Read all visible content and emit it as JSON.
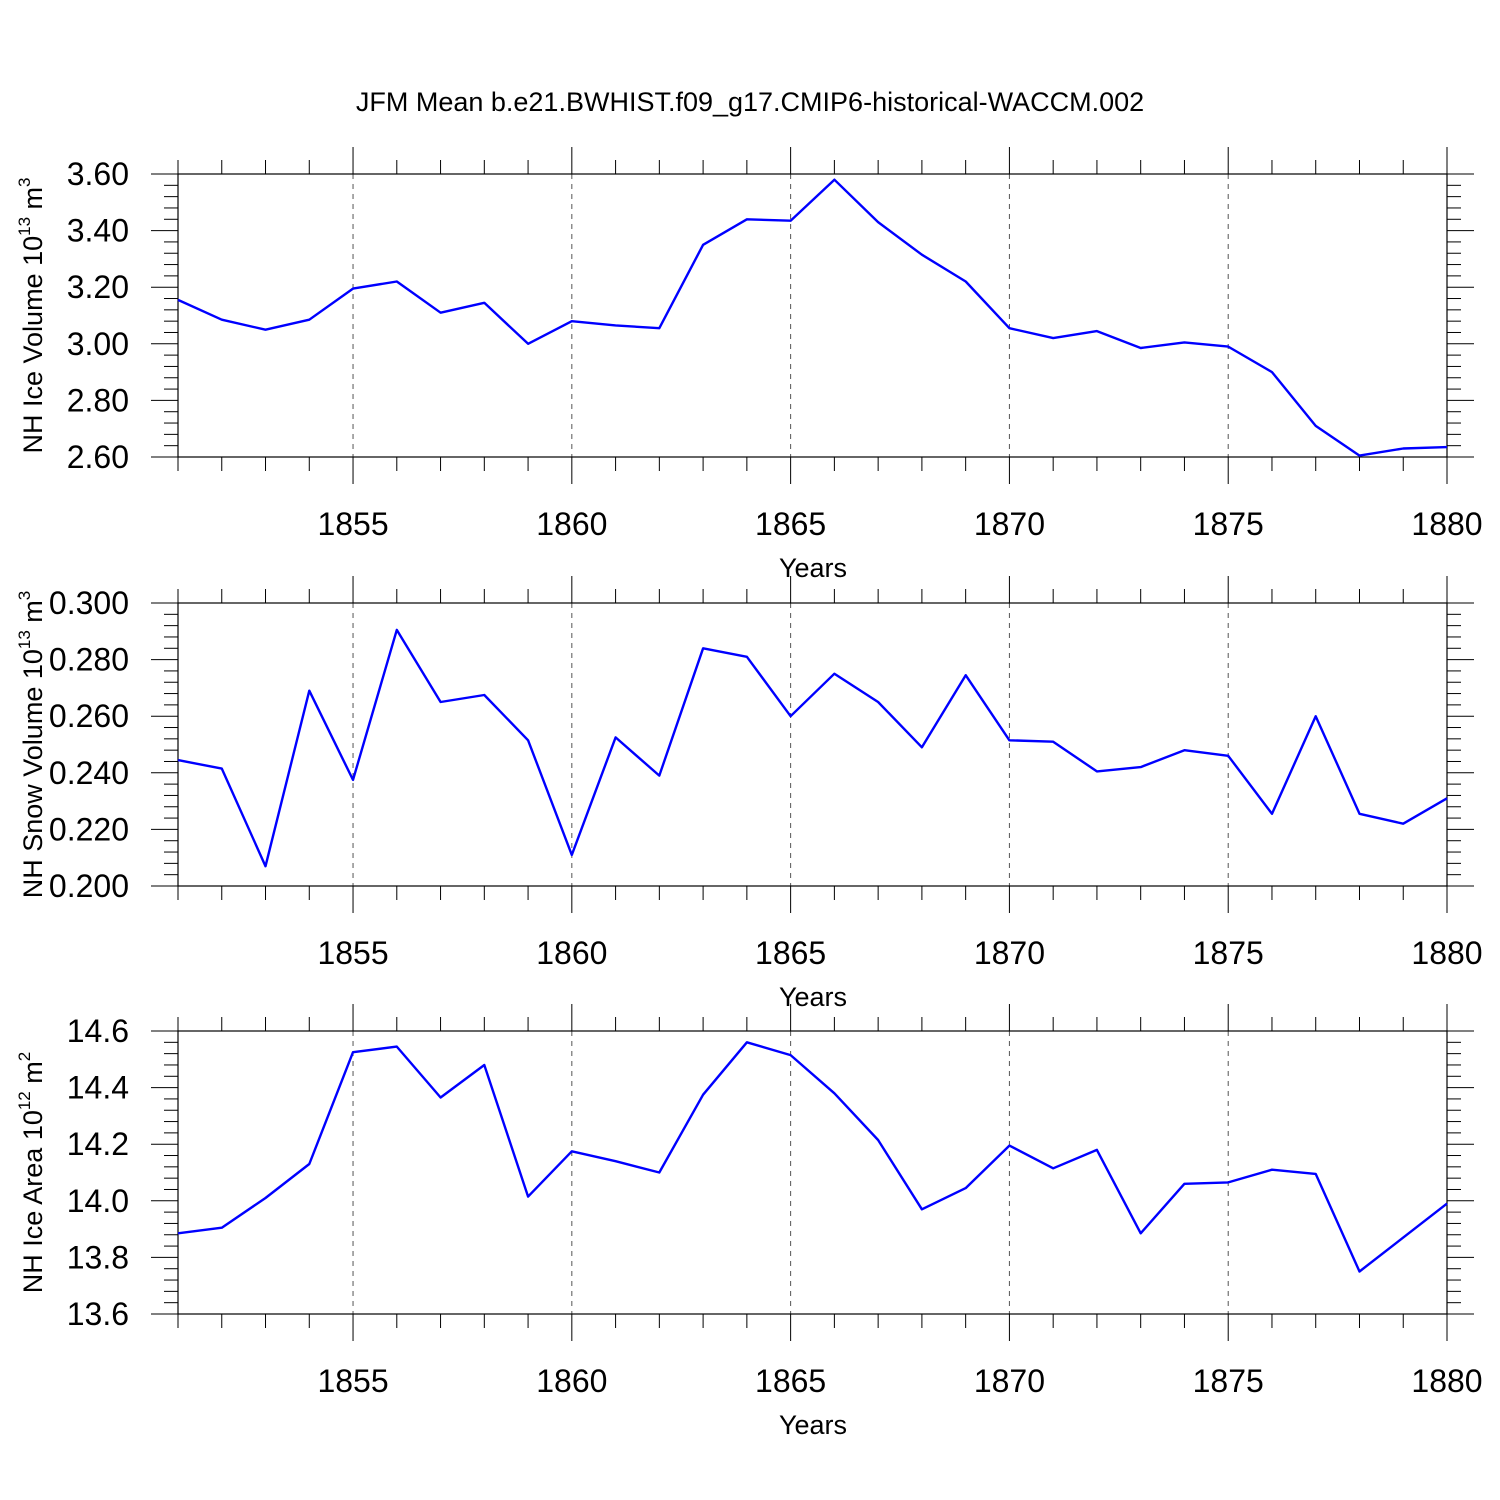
{
  "title": "JFM Mean b.e21.BWHIST.f09_g17.CMIP6-historical-WACCM.002",
  "colors": {
    "line": "#0000ff",
    "axis": "#000000",
    "grid": "#555555"
  },
  "chart_data": [
    {
      "type": "line",
      "xlabel": "Years",
      "ylabel_main": "NH Ice Volume 10",
      "ylabel_exp": "13",
      "ylabel_unit": " m",
      "ylabel_unit_exp": "3",
      "xlim": [
        1851,
        1880
      ],
      "ylim": [
        2.6,
        3.6
      ],
      "xticks": [
        "1855",
        "1860",
        "1865",
        "1870",
        "1875",
        "1880"
      ],
      "yticks": [
        "2.60",
        "2.80",
        "3.00",
        "3.20",
        "3.40",
        "3.60"
      ],
      "grid": "vertical dashed at major x ticks",
      "x": [
        1851,
        1852,
        1853,
        1854,
        1855,
        1856,
        1857,
        1858,
        1859,
        1860,
        1861,
        1862,
        1863,
        1864,
        1865,
        1866,
        1867,
        1868,
        1869,
        1870,
        1871,
        1872,
        1873,
        1874,
        1875,
        1876,
        1877,
        1878,
        1879,
        1880
      ],
      "values": [
        3.155,
        3.085,
        3.05,
        3.085,
        3.195,
        3.22,
        3.11,
        3.145,
        3.0,
        3.08,
        3.065,
        3.055,
        3.35,
        3.44,
        3.435,
        3.58,
        3.43,
        3.315,
        3.22,
        3.055,
        3.02,
        3.045,
        2.985,
        3.005,
        2.99,
        2.9,
        2.71,
        2.605,
        2.63,
        2.635
      ]
    },
    {
      "type": "line",
      "xlabel": "Years",
      "ylabel_main": "NH Snow Volume 10",
      "ylabel_exp": "13",
      "ylabel_unit": " m",
      "ylabel_unit_exp": "3",
      "xlim": [
        1851,
        1880
      ],
      "ylim": [
        0.2,
        0.3
      ],
      "xticks": [
        "1855",
        "1860",
        "1865",
        "1870",
        "1875",
        "1880"
      ],
      "yticks": [
        "0.200",
        "0.220",
        "0.240",
        "0.260",
        "0.280",
        "0.300"
      ],
      "grid": "vertical dashed at major x ticks",
      "x": [
        1851,
        1852,
        1853,
        1854,
        1855,
        1856,
        1857,
        1858,
        1859,
        1860,
        1861,
        1862,
        1863,
        1864,
        1865,
        1866,
        1867,
        1868,
        1869,
        1870,
        1871,
        1872,
        1873,
        1874,
        1875,
        1876,
        1877,
        1878,
        1879,
        1880
      ],
      "values": [
        0.2445,
        0.2415,
        0.207,
        0.269,
        0.2375,
        0.2905,
        0.265,
        0.2675,
        0.2515,
        0.211,
        0.2525,
        0.239,
        0.284,
        0.281,
        0.26,
        0.275,
        0.265,
        0.249,
        0.2745,
        0.2515,
        0.251,
        0.2405,
        0.242,
        0.248,
        0.246,
        0.2255,
        0.26,
        0.2255,
        0.222,
        0.231
      ]
    },
    {
      "type": "line",
      "xlabel": "Years",
      "ylabel_main": "NH Ice Area 10",
      "ylabel_exp": "12",
      "ylabel_unit": " m",
      "ylabel_unit_exp": "2",
      "xlim": [
        1851,
        1880
      ],
      "ylim": [
        13.6,
        14.6
      ],
      "xticks": [
        "1855",
        "1860",
        "1865",
        "1870",
        "1875",
        "1880"
      ],
      "yticks": [
        "13.6",
        "13.8",
        "14.0",
        "14.2",
        "14.4",
        "14.6"
      ],
      "grid": "vertical dashed at major x ticks",
      "x": [
        1851,
        1852,
        1853,
        1854,
        1855,
        1856,
        1857,
        1858,
        1859,
        1860,
        1861,
        1862,
        1863,
        1864,
        1865,
        1866,
        1867,
        1868,
        1869,
        1870,
        1871,
        1872,
        1873,
        1874,
        1875,
        1876,
        1877,
        1878,
        1879,
        1880
      ],
      "values": [
        13.885,
        13.905,
        14.01,
        14.13,
        14.525,
        14.545,
        14.365,
        14.48,
        14.015,
        14.175,
        14.14,
        14.1,
        14.375,
        14.56,
        14.515,
        14.38,
        14.215,
        13.97,
        14.045,
        14.195,
        14.115,
        14.18,
        13.885,
        14.06,
        14.065,
        14.11,
        14.095,
        13.75,
        13.87,
        13.99
      ]
    }
  ]
}
